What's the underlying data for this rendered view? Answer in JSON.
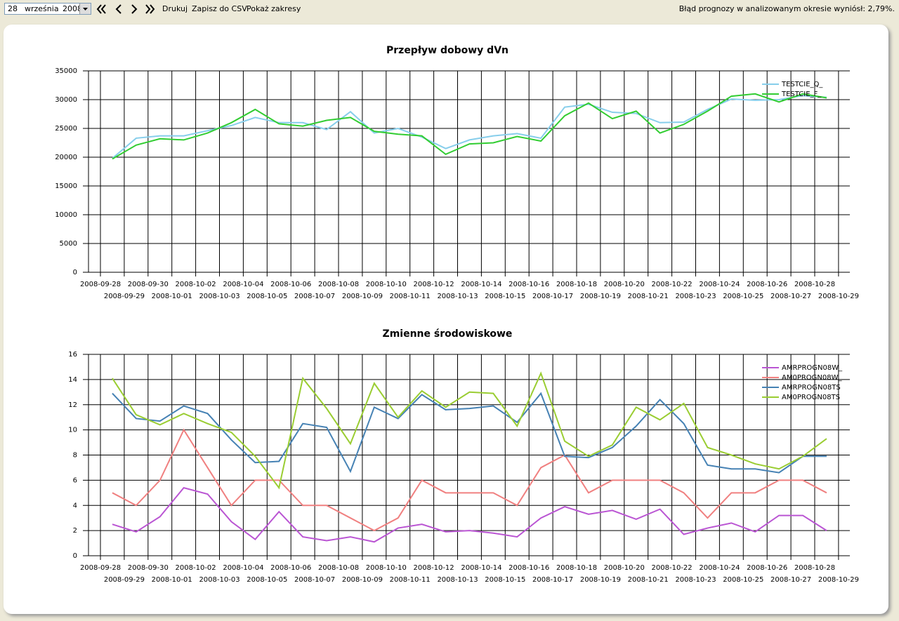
{
  "toolbar": {
    "day": "28",
    "month": "września",
    "year": "2008",
    "buttons": [
      "Drukuj",
      "Zapisz do CSV",
      "Pokaż zakresy"
    ],
    "status": "Błąd prognozy w analizowanym okresie wyniósł: 2,79%."
  },
  "chart_data": [
    {
      "type": "line",
      "title": "Przepływ dobowy dVn",
      "categories": [
        "2008-09-28",
        "2008-09-29",
        "2008-09-30",
        "2008-10-01",
        "2008-10-02",
        "2008-10-03",
        "2008-10-04",
        "2008-10-05",
        "2008-10-06",
        "2008-10-07",
        "2008-10-08",
        "2008-10-09",
        "2008-10-10",
        "2008-10-11",
        "2008-10-12",
        "2008-10-13",
        "2008-10-14",
        "2008-10-15",
        "2008-10-16",
        "2008-10-17",
        "2008-10-18",
        "2008-10-19",
        "2008-10-20",
        "2008-10-21",
        "2008-10-22",
        "2008-10-23",
        "2008-10-24",
        "2008-10-25",
        "2008-10-26",
        "2008-10-27",
        "2008-10-28",
        "2008-10-29"
      ],
      "series": [
        {
          "name": "TESTCIE_Q_",
          "color": "#87ceeb",
          "values": [
            19800,
            23300,
            23700,
            23700,
            24600,
            25500,
            26900,
            26000,
            26000,
            24800,
            27900,
            24200,
            25000,
            23500,
            21500,
            23000,
            23700,
            24100,
            23300,
            28700,
            29200,
            27800,
            27600,
            26000,
            26100,
            28300,
            30100,
            29900,
            30000,
            30700,
            30400,
            null
          ]
        },
        {
          "name": "TESTCIE_F_",
          "color": "#32cd32",
          "values": [
            19700,
            22100,
            23200,
            23000,
            24200,
            26000,
            28300,
            25800,
            25400,
            26400,
            26900,
            24500,
            24000,
            23700,
            20500,
            22300,
            22500,
            23600,
            22800,
            27200,
            29400,
            26700,
            28000,
            24200,
            25700,
            28000,
            30600,
            31000,
            29600,
            31000,
            30300,
            null
          ]
        }
      ],
      "ylim": [
        0,
        35000
      ],
      "yticks": [
        0,
        5000,
        10000,
        15000,
        20000,
        25000,
        30000,
        35000
      ],
      "grid": true,
      "legend": "top-right"
    },
    {
      "type": "line",
      "title": "Zmienne środowiskowe",
      "categories": [
        "2008-09-28",
        "2008-09-29",
        "2008-09-30",
        "2008-10-01",
        "2008-10-02",
        "2008-10-03",
        "2008-10-04",
        "2008-10-05",
        "2008-10-06",
        "2008-10-07",
        "2008-10-08",
        "2008-10-09",
        "2008-10-10",
        "2008-10-11",
        "2008-10-12",
        "2008-10-13",
        "2008-10-14",
        "2008-10-15",
        "2008-10-16",
        "2008-10-17",
        "2008-10-18",
        "2008-10-19",
        "2008-10-20",
        "2008-10-21",
        "2008-10-22",
        "2008-10-23",
        "2008-10-24",
        "2008-10-25",
        "2008-10-26",
        "2008-10-27",
        "2008-10-28",
        "2008-10-29"
      ],
      "series": [
        {
          "name": "AMRPROGN08W_",
          "color": "#ba55d3",
          "values": [
            2.5,
            1.9,
            3.1,
            5.4,
            4.9,
            2.7,
            1.3,
            3.5,
            1.5,
            1.2,
            1.5,
            1.1,
            2.2,
            2.5,
            1.9,
            2.0,
            1.8,
            1.5,
            3.0,
            3.9,
            3.3,
            3.6,
            2.9,
            3.7,
            1.7,
            2.2,
            2.6,
            1.9,
            3.2,
            3.2,
            2.0,
            null
          ]
        },
        {
          "name": "AM0PROGN08W_",
          "color": "#f08080",
          "values": [
            5,
            4,
            6,
            10,
            7,
            4,
            6,
            6,
            4,
            4,
            3,
            2,
            3,
            6,
            5,
            5,
            5,
            4,
            7,
            8,
            5,
            6,
            6,
            6,
            5,
            3,
            5,
            5,
            6,
            6,
            5,
            null
          ]
        },
        {
          "name": "AMRPROGN08TS",
          "color": "#4682b4",
          "values": [
            12.9,
            10.9,
            10.7,
            11.9,
            11.3,
            9.2,
            7.4,
            7.5,
            10.5,
            10.2,
            6.7,
            11.8,
            10.9,
            12.8,
            11.6,
            11.7,
            11.9,
            10.6,
            12.9,
            7.9,
            7.8,
            8.6,
            10.3,
            12.4,
            10.5,
            7.2,
            6.9,
            6.9,
            6.6,
            7.9,
            7.9,
            null
          ]
        },
        {
          "name": "AM0PROGN08TS",
          "color": "#9acd32",
          "values": [
            14.1,
            11.2,
            10.4,
            11.3,
            10.5,
            9.8,
            7.9,
            5.4,
            14.1,
            11.7,
            8.9,
            13.7,
            11.0,
            13.1,
            11.8,
            13.0,
            12.9,
            10.3,
            14.5,
            9.1,
            7.9,
            8.8,
            11.8,
            10.8,
            12.1,
            8.6,
            8.0,
            7.3,
            6.9,
            7.9,
            9.3,
            null
          ]
        }
      ],
      "ylim": [
        0,
        16
      ],
      "yticks": [
        0,
        2,
        4,
        6,
        8,
        10,
        12,
        14,
        16
      ],
      "grid": true,
      "legend": "top-right"
    }
  ]
}
